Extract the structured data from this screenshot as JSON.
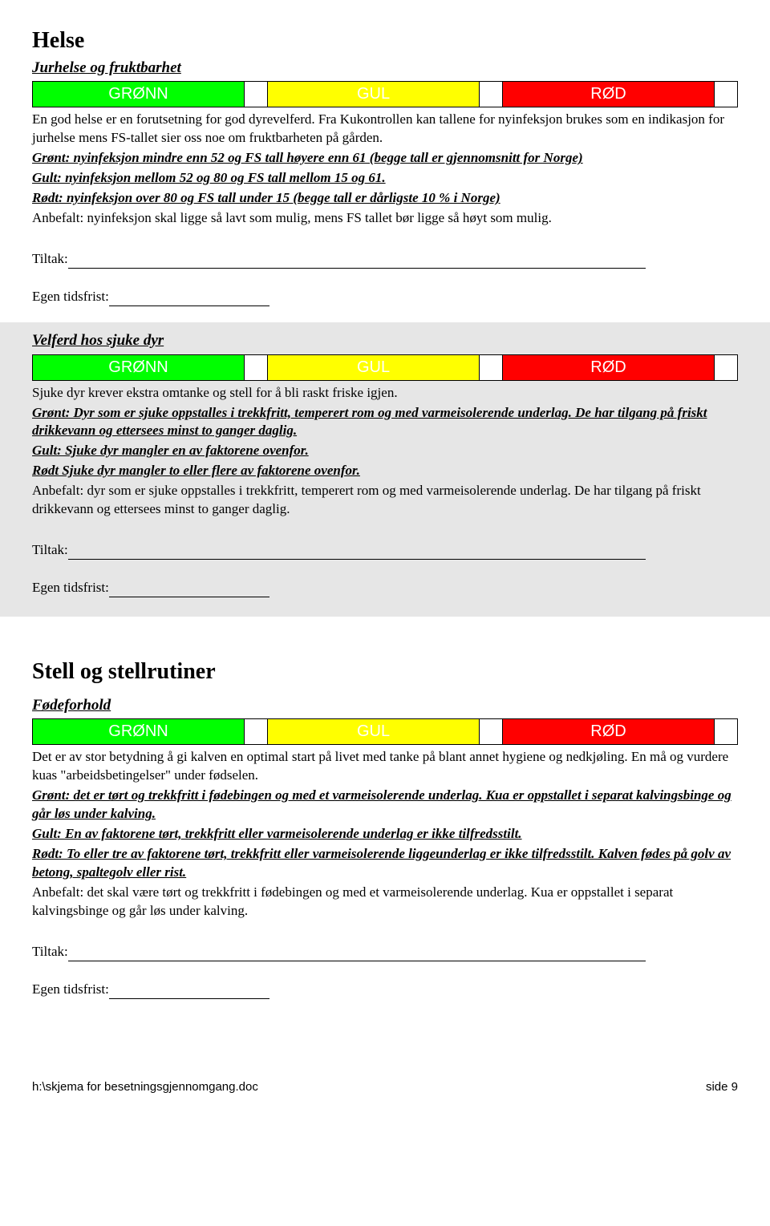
{
  "colors": {
    "green": "#00ff00",
    "yellow": "#ffff00",
    "red": "#ff0000",
    "alt_bg": "#e6e6e6"
  },
  "labels": {
    "green": "GRØNN",
    "yellow": "GUL",
    "red": "RØD",
    "tiltak": "Tiltak:",
    "egen_tidsfrist": "Egen tidsfrist:"
  },
  "header1": "Helse",
  "section1": {
    "subheading": "Jurhelse og fruktbarhet",
    "desc": "En god helse er en forutsetning for god dyrevelferd. Fra Kukontrollen kan tallene for nyinfeksjon brukes som en indikasjon for jurhelse mens FS-tallet sier oss noe om fruktbarheten på gården.",
    "gront": "Grønt: nyinfeksjon mindre enn 52 og FS tall høyere enn 61 (begge tall er gjennomsnitt for Norge)",
    "gult": "Gult: nyinfeksjon mellom 52 og 80 og FS tall mellom 15 og 61.",
    "rodt": "Rødt: nyinfeksjon over 80 og FS tall under 15 (begge tall er dårligste 10 % i Norge)",
    "anbefalt": "Anbefalt: nyinfeksjon skal ligge så lavt som mulig, mens FS tallet bør ligge så høyt som mulig."
  },
  "section2": {
    "subheading": "Velferd hos sjuke dyr",
    "desc": "Sjuke dyr krever ekstra omtanke og stell for å bli raskt friske igjen.",
    "gront": "Grønt: Dyr som er sjuke oppstalles i trekkfritt, temperert rom og med varmeisolerende underlag. De har tilgang på friskt drikkevann og ettersees minst to ganger daglig.",
    "gult": "Gult: Sjuke dyr mangler en av faktorene ovenfor.",
    "rodt": "Rødt Sjuke dyr mangler to eller flere av faktorene ovenfor.",
    "anbefalt": "Anbefalt: dyr som er sjuke oppstalles i trekkfritt, temperert rom og med varmeisolerende underlag. De har tilgang på friskt drikkevann og ettersees minst to ganger daglig."
  },
  "header2": "Stell og stellrutiner",
  "section3": {
    "subheading": "Fødeforhold",
    "desc": "Det er av stor betydning å gi kalven en optimal start på livet med tanke på blant annet hygiene og nedkjøling. En må og vurdere kuas \"arbeidsbetingelser\" under fødselen.",
    "gront": "Grønt: det er tørt og trekkfritt i fødebingen og med et varmeisolerende underlag. Kua er oppstallet i separat kalvingsbinge og går løs under kalving.",
    "gult": "Gult: En av faktorene tørt, trekkfritt eller varmeisolerende underlag er ikke tilfredsstilt.",
    "rodt": "Rødt: To eller tre av faktorene tørt, trekkfritt eller varmeisolerende liggeunderlag er ikke tilfredsstilt. Kalven fødes på golv av betong, spaltegolv eller rist.",
    "anbefalt": "Anbefalt: det skal være tørt og trekkfritt i fødebingen og med et varmeisolerende underlag. Kua er oppstallet i separat kalvingsbinge og går løs under kalving."
  },
  "footer": {
    "left": "h:\\skjema for besetningsgjennomgang.doc",
    "right": "side 9"
  }
}
